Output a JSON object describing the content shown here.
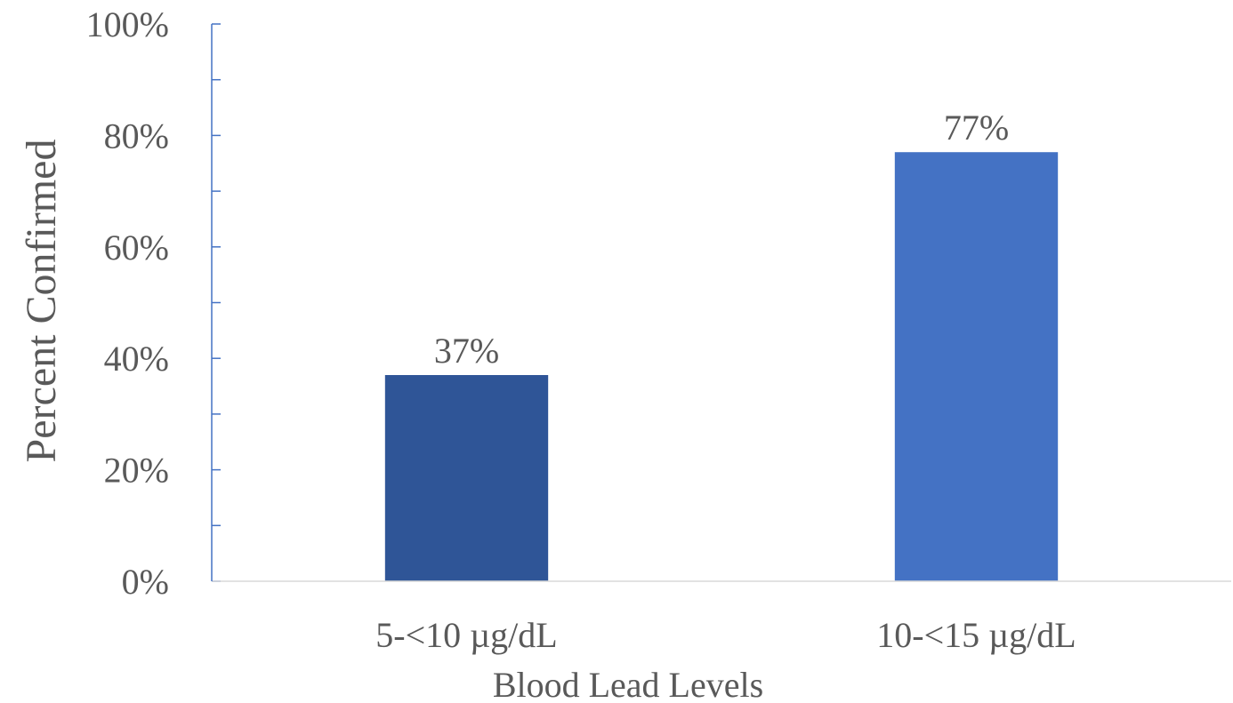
{
  "chart_data": {
    "type": "bar",
    "title": "",
    "xlabel": "Blood Lead Levels",
    "ylabel": "Percent Confirmed",
    "categories": [
      "5-<10 µg/dL",
      "10-<15 µg/dL"
    ],
    "values": [
      37,
      77
    ],
    "data_labels": [
      "37%",
      "77%"
    ],
    "ylim": [
      0,
      100
    ],
    "yticks": [
      0,
      20,
      40,
      60,
      80,
      100
    ],
    "ytick_labels": [
      "0%",
      "20%",
      "40%",
      "60%",
      "80%",
      "100%"
    ],
    "grid": false,
    "legend": "none",
    "colors": {
      "bars": [
        "#2f5597",
        "#4472c4"
      ],
      "y_axis": "#4472c4",
      "x_axis": "#d9d9d9",
      "text": "#595959"
    }
  }
}
